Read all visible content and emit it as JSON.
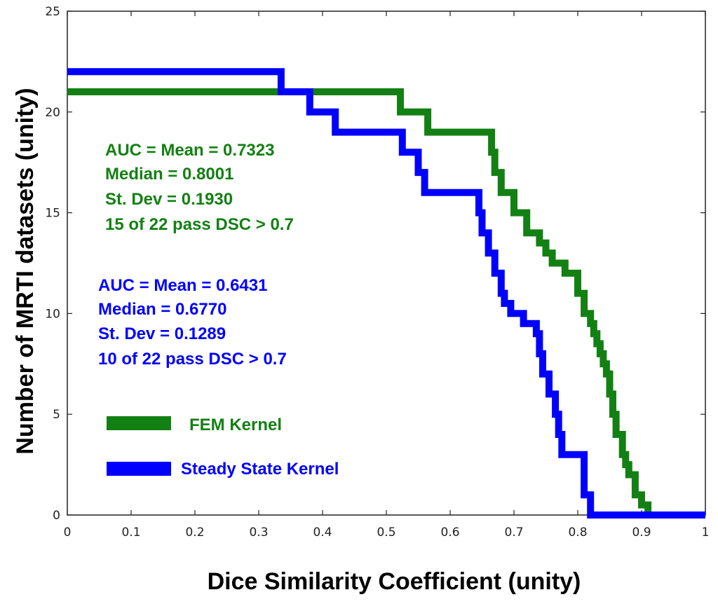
{
  "chart_data": {
    "type": "line",
    "xlabel": "Dice Similarity Coefficient (unity)",
    "ylabel": "Number of MRTI datasets (unity)",
    "xlim": [
      0,
      1
    ],
    "ylim": [
      0,
      25
    ],
    "xticks": [
      "0",
      "0.1",
      "0.2",
      "0.3",
      "0.4",
      "0.5",
      "0.6",
      "0.7",
      "0.8",
      "0.9",
      "1"
    ],
    "yticks": [
      "0",
      "5",
      "10",
      "15",
      "20",
      "25"
    ],
    "grid": false,
    "legend_position": "lower-left",
    "series": [
      {
        "name": "FEM Kernel",
        "color": "#138013",
        "step": true,
        "x": [
          0,
          0.52,
          0.522,
          0.565,
          0.66,
          0.665,
          0.67,
          0.68,
          0.7,
          0.72,
          0.74,
          0.75,
          0.76,
          0.78,
          0.8,
          0.81,
          0.82,
          0.825,
          0.83,
          0.835,
          0.84,
          0.845,
          0.85,
          0.855,
          0.86,
          0.87,
          0.875,
          0.88,
          0.89,
          0.9,
          0.91,
          1.0
        ],
        "y": [
          21,
          21,
          20,
          19,
          19,
          18,
          17,
          16,
          15,
          14,
          13.5,
          13,
          12.5,
          12,
          11,
          10,
          9.5,
          9,
          8.5,
          8,
          7.5,
          7,
          6,
          5,
          4,
          3,
          2.5,
          2,
          1,
          0.5,
          0,
          0
        ]
      },
      {
        "name": "Steady State Kernel",
        "color": "#0000ff",
        "step": true,
        "x": [
          0,
          0.33,
          0.335,
          0.38,
          0.42,
          0.52,
          0.525,
          0.55,
          0.56,
          0.575,
          0.64,
          0.645,
          0.65,
          0.66,
          0.67,
          0.68,
          0.685,
          0.695,
          0.715,
          0.735,
          0.74,
          0.745,
          0.755,
          0.765,
          0.77,
          0.775,
          0.8,
          0.81,
          0.82,
          0.89,
          1.0
        ],
        "y": [
          22,
          22,
          21,
          20,
          19,
          19,
          18,
          17,
          16,
          16,
          16,
          15,
          14,
          13,
          12,
          11,
          10.5,
          10,
          9.5,
          9,
          8,
          7,
          6,
          5,
          4,
          3,
          3,
          1,
          0,
          0,
          0
        ]
      }
    ],
    "annotations": [
      {
        "color": "#138013",
        "lines": [
          "AUC = Mean = 0.7323",
          "Median = 0.8001",
          "St. Dev = 0.1930",
          "15 of 22 pass DSC > 0.7"
        ]
      },
      {
        "color": "#0000ff",
        "lines": [
          "AUC = Mean = 0.6431",
          "Median = 0.6770",
          "St. Dev = 0.1289",
          "10 of 22 pass DSC > 0.7"
        ]
      }
    ]
  }
}
